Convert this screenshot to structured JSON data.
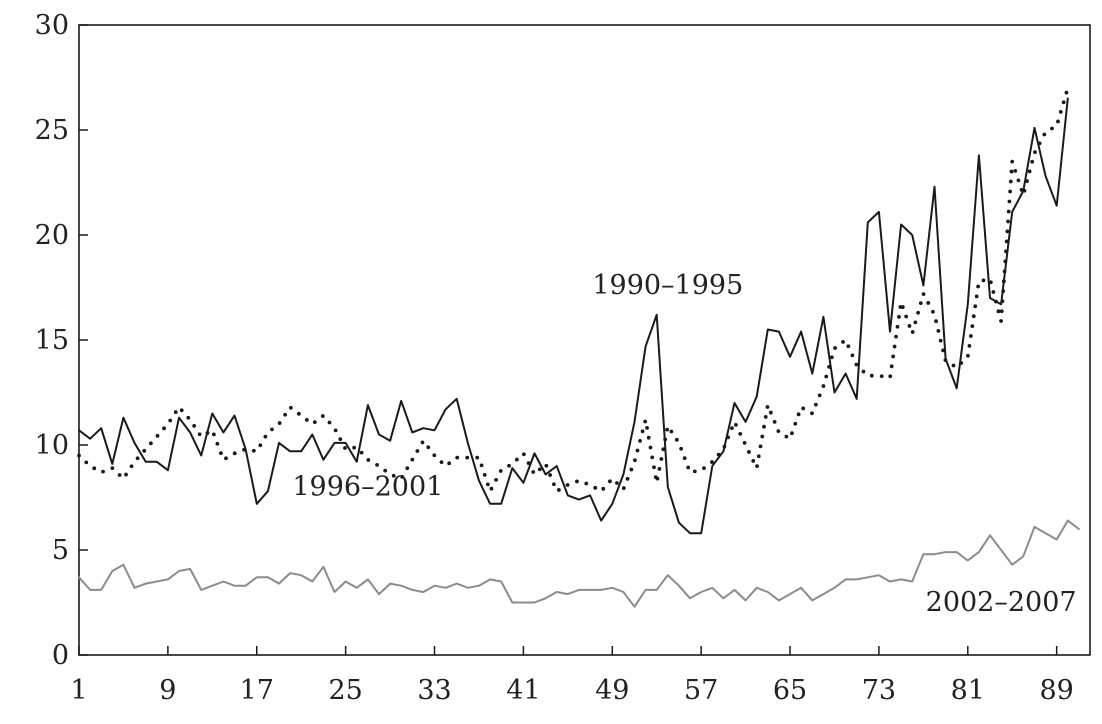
{
  "chart_data": {
    "type": "line",
    "title": "",
    "xlabel": "",
    "ylabel": "",
    "xlim": [
      1,
      92
    ],
    "ylim": [
      0,
      30
    ],
    "x_ticks": [
      1,
      9,
      17,
      25,
      33,
      41,
      49,
      57,
      65,
      73,
      81,
      89
    ],
    "y_ticks": [
      0,
      5,
      10,
      15,
      20,
      25,
      30
    ],
    "grid": false,
    "legend": "none",
    "series": [
      {
        "name": "1990–1995",
        "style": "solid",
        "color": "#1a1a1a",
        "label_at": [
          54,
          17.2
        ],
        "values": [
          10.7,
          10.3,
          10.8,
          9.1,
          11.3,
          10.1,
          9.2,
          9.2,
          8.8,
          11.3,
          10.6,
          9.5,
          11.5,
          10.6,
          11.4,
          9.8,
          7.2,
          7.8,
          10.1,
          9.7,
          9.7,
          10.5,
          9.3,
          10.1,
          10.1,
          9.2,
          11.9,
          10.5,
          10.2,
          12.1,
          10.6,
          10.8,
          10.7,
          11.7,
          12.2,
          10.1,
          8.3,
          7.2,
          7.2,
          8.9,
          8.2,
          9.6,
          8.6,
          9.0,
          7.6,
          7.4,
          7.6,
          6.4,
          7.2,
          8.6,
          11.1,
          14.7,
          16.2,
          8.0,
          6.3,
          5.8,
          5.8,
          9.0,
          9.7,
          12.0,
          11.1,
          12.3,
          15.5,
          15.4,
          14.2,
          15.4,
          13.4,
          16.1,
          12.5,
          13.4,
          12.2,
          20.6,
          21.1,
          15.4,
          20.5,
          20.0,
          17.6,
          22.3,
          14.1,
          12.7,
          16.7,
          23.8,
          17.0,
          16.7,
          21.1,
          22.1,
          25.1,
          22.8,
          21.4,
          26.5
        ]
      },
      {
        "name": "1996–2001",
        "style": "dotted",
        "color": "#1a1a1a",
        "label_at": [
          27,
          7.6
        ],
        "values": [
          9.5,
          9.0,
          8.7,
          8.9,
          8.4,
          9.2,
          9.8,
          10.4,
          11.0,
          11.8,
          11.2,
          10.4,
          10.7,
          9.3,
          9.6,
          9.8,
          9.7,
          10.6,
          11.0,
          11.8,
          11.4,
          11.0,
          11.4,
          10.8,
          9.8,
          9.9,
          9.3,
          9.0,
          8.6,
          8.4,
          9.3,
          10.2,
          9.5,
          9.0,
          9.4,
          9.4,
          9.4,
          7.8,
          8.8,
          9.1,
          9.6,
          8.6,
          9.1,
          7.8,
          8.1,
          8.3,
          8.1,
          7.8,
          8.4,
          7.9,
          9.2,
          11.2,
          8.2,
          10.9,
          10.1,
          8.7,
          8.8,
          9.2,
          9.8,
          11.1,
          10.0,
          8.9,
          11.9,
          10.6,
          10.3,
          11.8,
          11.5,
          12.8,
          14.6,
          15.0,
          13.8,
          13.3,
          13.3,
          13.2,
          16.8,
          15.3,
          17.2,
          16.2,
          14.0,
          13.7,
          14.2,
          17.8,
          17.9,
          15.9,
          23.5,
          21.9,
          23.9,
          24.9,
          25.2,
          27.0
        ]
      },
      {
        "name": "2002–2007",
        "style": "solid",
        "color": "#8c8c8c",
        "label_at": [
          84,
          2.1
        ],
        "values": [
          3.7,
          3.1,
          3.1,
          4.0,
          4.3,
          3.2,
          3.4,
          3.5,
          3.6,
          4.0,
          4.1,
          3.1,
          3.3,
          3.5,
          3.3,
          3.3,
          3.7,
          3.7,
          3.4,
          3.9,
          3.8,
          3.5,
          4.2,
          3.0,
          3.5,
          3.2,
          3.6,
          2.9,
          3.4,
          3.3,
          3.1,
          3.0,
          3.3,
          3.2,
          3.4,
          3.2,
          3.3,
          3.6,
          3.5,
          2.5,
          2.5,
          2.5,
          2.7,
          3.0,
          2.9,
          3.1,
          3.1,
          3.1,
          3.2,
          3.0,
          2.3,
          3.1,
          3.1,
          3.8,
          3.3,
          2.7,
          3.0,
          3.2,
          2.7,
          3.1,
          2.6,
          3.2,
          3.0,
          2.6,
          2.9,
          3.2,
          2.6,
          2.9,
          3.2,
          3.6,
          3.6,
          3.7,
          3.8,
          3.5,
          3.6,
          3.5,
          4.8,
          4.8,
          4.9,
          4.9,
          4.5,
          4.9,
          5.7,
          5.0,
          4.3,
          4.7,
          6.1,
          5.8,
          5.5,
          6.4,
          6.0
        ]
      }
    ]
  }
}
